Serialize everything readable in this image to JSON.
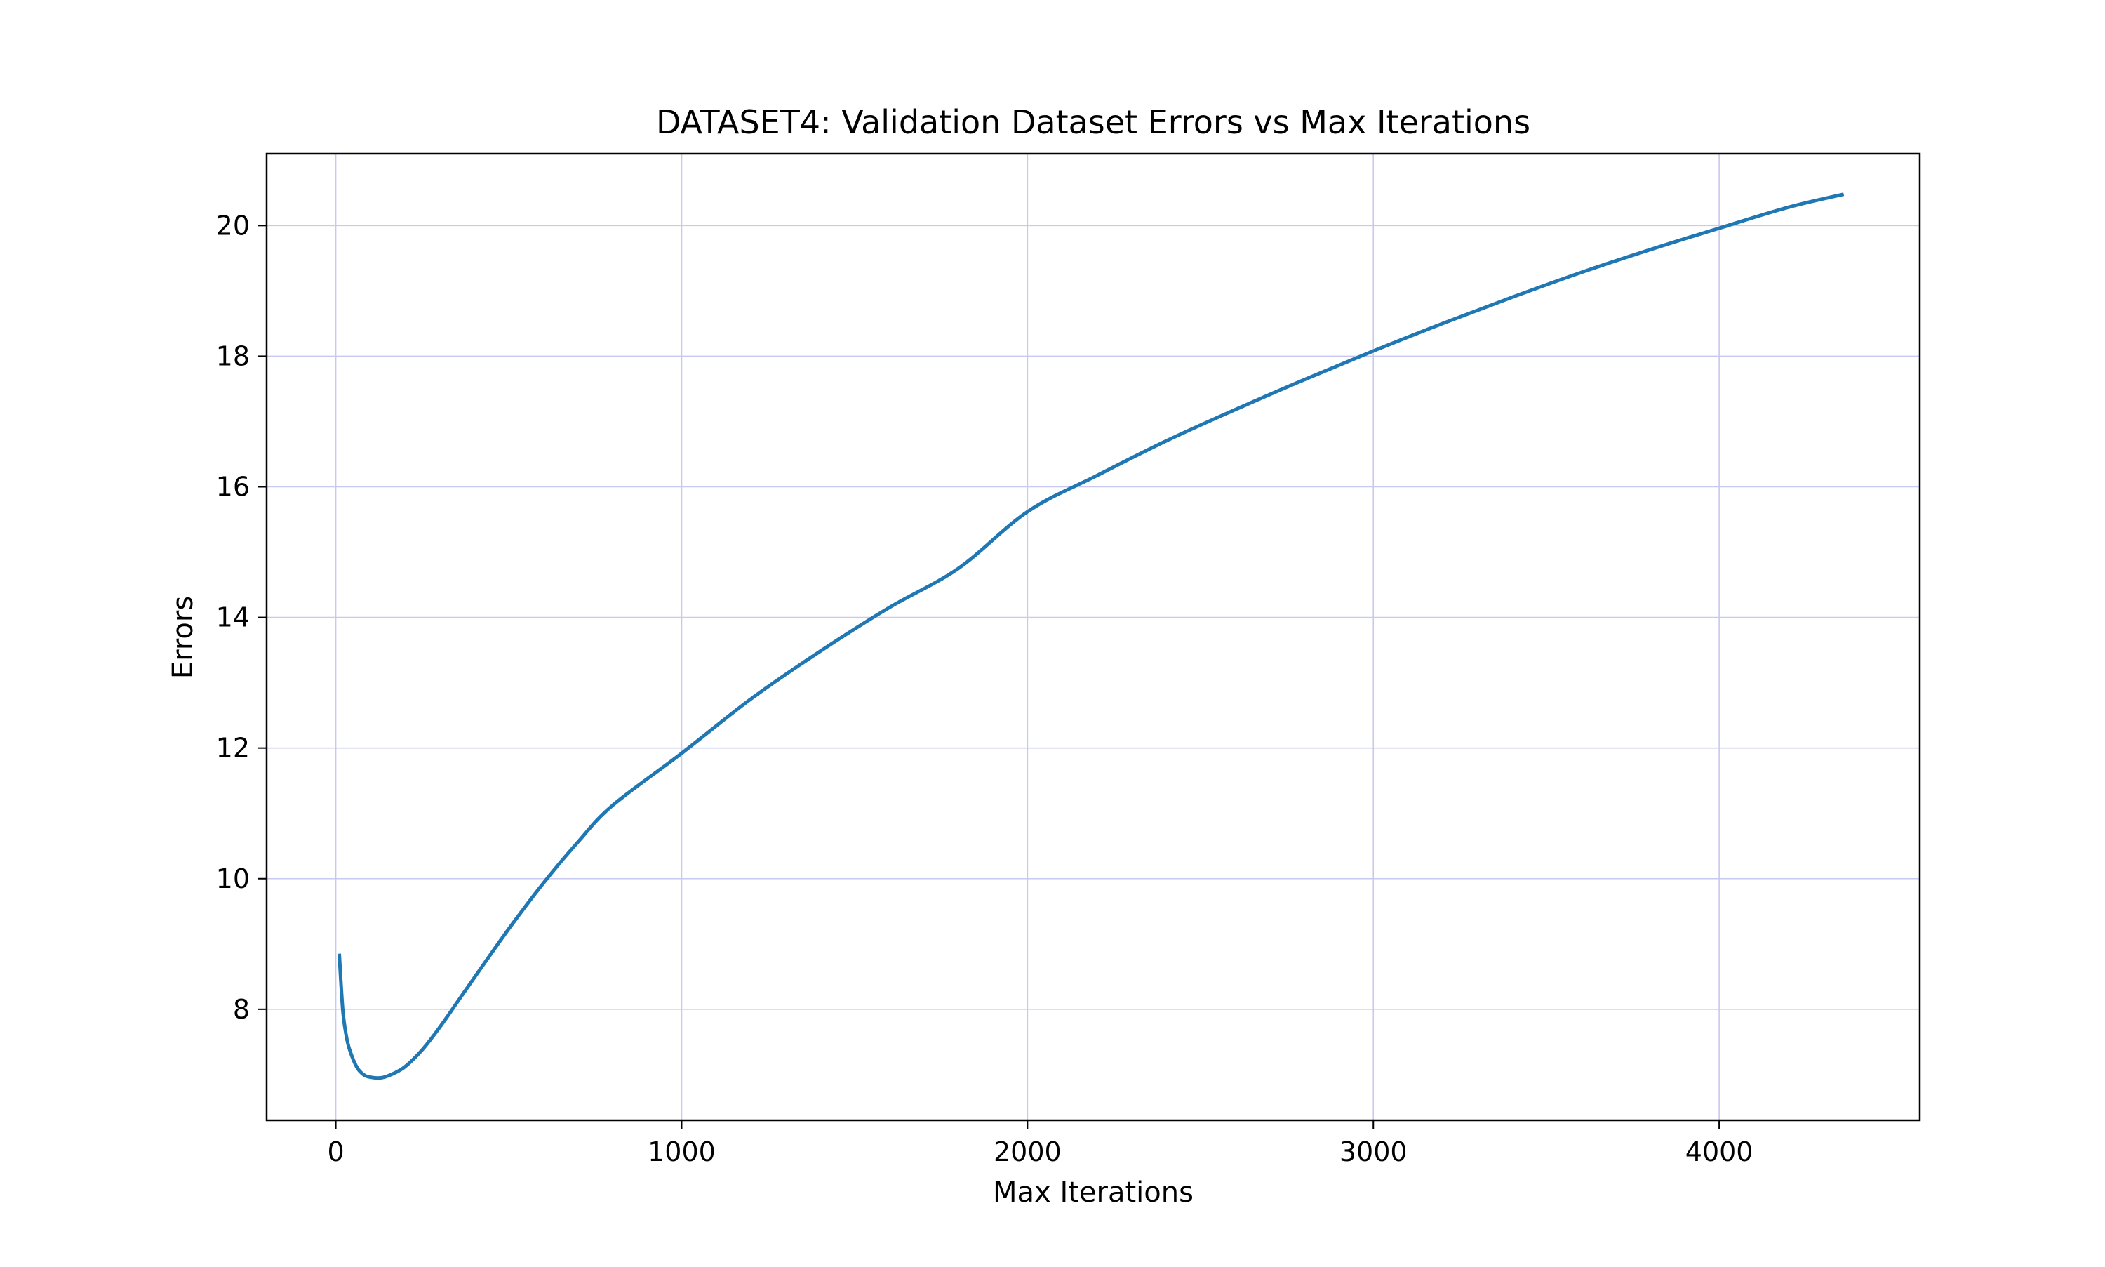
{
  "chart_data": {
    "type": "line",
    "title": "DATASET4: Validation Dataset Errors vs Max Iterations",
    "xlabel": "Max Iterations",
    "ylabel": "Errors",
    "xlim": [
      -200,
      4580
    ],
    "ylim": [
      6.3,
      21.1
    ],
    "xticks": [
      0,
      1000,
      2000,
      3000,
      4000
    ],
    "yticks": [
      8,
      10,
      12,
      14,
      16,
      18,
      20
    ],
    "grid": true,
    "legend": "none",
    "colors": {
      "line": "#1f77b4",
      "grid": "#c8c8f0",
      "axes": "#000000",
      "background": "#ffffff"
    },
    "series": [
      {
        "x": [
          10,
          20,
          30,
          40,
          60,
          80,
          100,
          130,
          160,
          200,
          250,
          300,
          350,
          400,
          500,
          600,
          700,
          800,
          1000,
          1200,
          1400,
          1600,
          1800,
          2000,
          2200,
          2400,
          2600,
          2800,
          3000,
          3200,
          3400,
          3600,
          3800,
          4000,
          4200,
          4360
        ],
        "y": [
          8.85,
          8.0,
          7.6,
          7.38,
          7.12,
          7.0,
          6.96,
          6.95,
          7.0,
          7.12,
          7.38,
          7.72,
          8.1,
          8.48,
          9.23,
          9.93,
          10.56,
          11.12,
          11.92,
          12.75,
          13.48,
          14.15,
          14.75,
          15.62,
          16.17,
          16.7,
          17.18,
          17.64,
          18.08,
          18.5,
          18.9,
          19.28,
          19.63,
          19.96,
          20.28,
          20.48
        ]
      }
    ]
  }
}
